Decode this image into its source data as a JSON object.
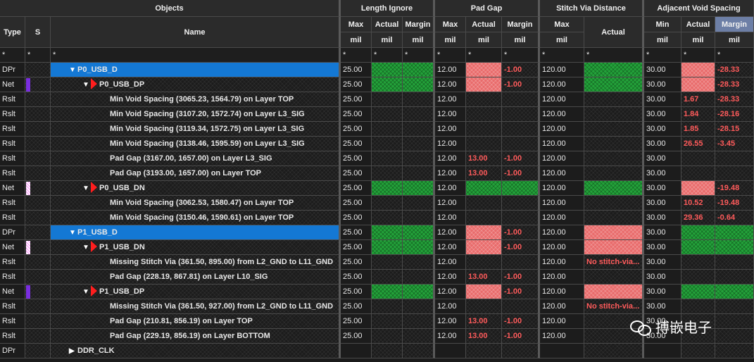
{
  "headers": {
    "groups": {
      "objects": "Objects",
      "length_ignore": "Length Ignore",
      "pad_gap": "Pad Gap",
      "stitch_via": "Stitch Via Distance",
      "adjacent_void": "Adjacent Void Spacing"
    },
    "columns": {
      "type": "Type",
      "s": "S",
      "name": "Name",
      "li_max": "Max",
      "li_actual": "Actual",
      "li_margin": "Margin",
      "pg_max": "Max",
      "pg_actual": "Actual",
      "pg_margin": "Margin",
      "sv_max": "Max",
      "sv_actual": "Actual",
      "av_min": "Min",
      "av_actual": "Actual",
      "av_margin": "Margin"
    },
    "units": {
      "li_max": "mil",
      "li_actual": "mil",
      "li_margin": "mil",
      "pg_max": "mil",
      "pg_actual": "mil",
      "pg_margin": "mil",
      "sv_max": "mil",
      "av_min": "mil",
      "av_actual": "mil",
      "av_margin": "mil"
    }
  },
  "filter_symbol": "*",
  "rows": [
    {
      "type": "DPr",
      "swatch": "",
      "indent": 1,
      "arrow": "down",
      "flag": false,
      "name": "P0_USB_D",
      "selected": true,
      "li_max": "25.00",
      "li_actual": {
        "v": "",
        "s": "g"
      },
      "li_margin": {
        "v": "",
        "s": "g"
      },
      "pg_max": "12.00",
      "pg_actual": {
        "v": "",
        "s": "r"
      },
      "pg_margin": {
        "v": "-1.00",
        "s": "neg"
      },
      "sv_max": "120.00",
      "sv_actual": {
        "v": "",
        "s": "g"
      },
      "av_min": "30.00",
      "av_actual": {
        "v": "",
        "s": "r"
      },
      "av_margin": {
        "v": "-28.33",
        "s": "neg"
      }
    },
    {
      "type": "Net",
      "swatch": "purple",
      "indent": 2,
      "arrow": "down",
      "flag": true,
      "name": "P0_USB_DP",
      "selected": false,
      "li_max": "25.00",
      "li_actual": {
        "v": "",
        "s": "g"
      },
      "li_margin": {
        "v": "",
        "s": "g"
      },
      "pg_max": "12.00",
      "pg_actual": {
        "v": "",
        "s": "r"
      },
      "pg_margin": {
        "v": "-1.00",
        "s": "neg"
      },
      "sv_max": "120.00",
      "sv_actual": {
        "v": "",
        "s": "g"
      },
      "av_min": "30.00",
      "av_actual": {
        "v": "",
        "s": "r"
      },
      "av_margin": {
        "v": "-28.33",
        "s": "neg"
      }
    },
    {
      "type": "Rslt",
      "swatch": "",
      "indent": 3,
      "arrow": "",
      "flag": false,
      "name": "Min Void Spacing (3065.23, 1564.79) on Layer TOP",
      "selected": false,
      "li_max": "25.00",
      "li_actual": {
        "v": "",
        "s": ""
      },
      "li_margin": {
        "v": "",
        "s": ""
      },
      "pg_max": "12.00",
      "pg_actual": {
        "v": "",
        "s": ""
      },
      "pg_margin": {
        "v": "",
        "s": ""
      },
      "sv_max": "120.00",
      "sv_actual": {
        "v": "",
        "s": ""
      },
      "av_min": "30.00",
      "av_actual": {
        "v": "1.67",
        "s": "neg"
      },
      "av_margin": {
        "v": "-28.33",
        "s": "neg"
      }
    },
    {
      "type": "Rslt",
      "swatch": "",
      "indent": 3,
      "arrow": "",
      "flag": false,
      "name": "Min Void Spacing (3107.20, 1572.74) on Layer L3_SIG",
      "selected": false,
      "li_max": "25.00",
      "li_actual": {
        "v": "",
        "s": ""
      },
      "li_margin": {
        "v": "",
        "s": ""
      },
      "pg_max": "12.00",
      "pg_actual": {
        "v": "",
        "s": ""
      },
      "pg_margin": {
        "v": "",
        "s": ""
      },
      "sv_max": "120.00",
      "sv_actual": {
        "v": "",
        "s": ""
      },
      "av_min": "30.00",
      "av_actual": {
        "v": "1.84",
        "s": "neg"
      },
      "av_margin": {
        "v": "-28.16",
        "s": "neg"
      }
    },
    {
      "type": "Rslt",
      "swatch": "",
      "indent": 3,
      "arrow": "",
      "flag": false,
      "name": "Min Void Spacing (3119.34, 1572.75) on Layer L3_SIG",
      "selected": false,
      "li_max": "25.00",
      "li_actual": {
        "v": "",
        "s": ""
      },
      "li_margin": {
        "v": "",
        "s": ""
      },
      "pg_max": "12.00",
      "pg_actual": {
        "v": "",
        "s": ""
      },
      "pg_margin": {
        "v": "",
        "s": ""
      },
      "sv_max": "120.00",
      "sv_actual": {
        "v": "",
        "s": ""
      },
      "av_min": "30.00",
      "av_actual": {
        "v": "1.85",
        "s": "neg"
      },
      "av_margin": {
        "v": "-28.15",
        "s": "neg"
      }
    },
    {
      "type": "Rslt",
      "swatch": "",
      "indent": 3,
      "arrow": "",
      "flag": false,
      "name": "Min Void Spacing (3138.46, 1595.59) on Layer L3_SIG",
      "selected": false,
      "li_max": "25.00",
      "li_actual": {
        "v": "",
        "s": ""
      },
      "li_margin": {
        "v": "",
        "s": ""
      },
      "pg_max": "12.00",
      "pg_actual": {
        "v": "",
        "s": ""
      },
      "pg_margin": {
        "v": "",
        "s": ""
      },
      "sv_max": "120.00",
      "sv_actual": {
        "v": "",
        "s": ""
      },
      "av_min": "30.00",
      "av_actual": {
        "v": "26.55",
        "s": "neg"
      },
      "av_margin": {
        "v": "-3.45",
        "s": "neg"
      }
    },
    {
      "type": "Rslt",
      "swatch": "",
      "indent": 3,
      "arrow": "",
      "flag": false,
      "name": "Pad Gap (3167.00, 1657.00) on Layer L3_SIG",
      "selected": false,
      "li_max": "25.00",
      "li_actual": {
        "v": "",
        "s": ""
      },
      "li_margin": {
        "v": "",
        "s": ""
      },
      "pg_max": "12.00",
      "pg_actual": {
        "v": "13.00",
        "s": "neg"
      },
      "pg_margin": {
        "v": "-1.00",
        "s": "neg"
      },
      "sv_max": "120.00",
      "sv_actual": {
        "v": "",
        "s": ""
      },
      "av_min": "30.00",
      "av_actual": {
        "v": "",
        "s": ""
      },
      "av_margin": {
        "v": "",
        "s": ""
      }
    },
    {
      "type": "Rslt",
      "swatch": "",
      "indent": 3,
      "arrow": "",
      "flag": false,
      "name": "Pad Gap (3193.00, 1657.00) on Layer TOP",
      "selected": false,
      "li_max": "25.00",
      "li_actual": {
        "v": "",
        "s": ""
      },
      "li_margin": {
        "v": "",
        "s": ""
      },
      "pg_max": "12.00",
      "pg_actual": {
        "v": "13.00",
        "s": "neg"
      },
      "pg_margin": {
        "v": "-1.00",
        "s": "neg"
      },
      "sv_max": "120.00",
      "sv_actual": {
        "v": "",
        "s": ""
      },
      "av_min": "30.00",
      "av_actual": {
        "v": "",
        "s": ""
      },
      "av_margin": {
        "v": "",
        "s": ""
      }
    },
    {
      "type": "Net",
      "swatch": "pink",
      "indent": 2,
      "arrow": "down",
      "flag": true,
      "name": "P0_USB_DN",
      "selected": false,
      "li_max": "25.00",
      "li_actual": {
        "v": "",
        "s": "g"
      },
      "li_margin": {
        "v": "",
        "s": "g"
      },
      "pg_max": "12.00",
      "pg_actual": {
        "v": "",
        "s": "g"
      },
      "pg_margin": {
        "v": "",
        "s": "g"
      },
      "sv_max": "120.00",
      "sv_actual": {
        "v": "",
        "s": "g"
      },
      "av_min": "30.00",
      "av_actual": {
        "v": "",
        "s": "r"
      },
      "av_margin": {
        "v": "-19.48",
        "s": "neg"
      }
    },
    {
      "type": "Rslt",
      "swatch": "",
      "indent": 3,
      "arrow": "",
      "flag": false,
      "name": "Min Void Spacing (3062.53, 1580.47) on Layer TOP",
      "selected": false,
      "li_max": "25.00",
      "li_actual": {
        "v": "",
        "s": ""
      },
      "li_margin": {
        "v": "",
        "s": ""
      },
      "pg_max": "12.00",
      "pg_actual": {
        "v": "",
        "s": ""
      },
      "pg_margin": {
        "v": "",
        "s": ""
      },
      "sv_max": "120.00",
      "sv_actual": {
        "v": "",
        "s": ""
      },
      "av_min": "30.00",
      "av_actual": {
        "v": "10.52",
        "s": "neg"
      },
      "av_margin": {
        "v": "-19.48",
        "s": "neg"
      }
    },
    {
      "type": "Rslt",
      "swatch": "",
      "indent": 3,
      "arrow": "",
      "flag": false,
      "name": "Min Void Spacing (3150.46, 1590.61) on Layer TOP",
      "selected": false,
      "li_max": "25.00",
      "li_actual": {
        "v": "",
        "s": ""
      },
      "li_margin": {
        "v": "",
        "s": ""
      },
      "pg_max": "12.00",
      "pg_actual": {
        "v": "",
        "s": ""
      },
      "pg_margin": {
        "v": "",
        "s": ""
      },
      "sv_max": "120.00",
      "sv_actual": {
        "v": "",
        "s": ""
      },
      "av_min": "30.00",
      "av_actual": {
        "v": "29.36",
        "s": "neg"
      },
      "av_margin": {
        "v": "-0.64",
        "s": "neg"
      }
    },
    {
      "type": "DPr",
      "swatch": "",
      "indent": 1,
      "arrow": "down",
      "flag": false,
      "name": "P1_USB_D",
      "selected": true,
      "li_max": "25.00",
      "li_actual": {
        "v": "",
        "s": "g"
      },
      "li_margin": {
        "v": "",
        "s": "g"
      },
      "pg_max": "12.00",
      "pg_actual": {
        "v": "",
        "s": "r"
      },
      "pg_margin": {
        "v": "-1.00",
        "s": "neg"
      },
      "sv_max": "120.00",
      "sv_actual": {
        "v": "",
        "s": "r"
      },
      "av_min": "30.00",
      "av_actual": {
        "v": "",
        "s": "g"
      },
      "av_margin": {
        "v": "",
        "s": "g"
      }
    },
    {
      "type": "Net",
      "swatch": "pink",
      "indent": 2,
      "arrow": "down",
      "flag": true,
      "name": "P1_USB_DN",
      "selected": false,
      "li_max": "25.00",
      "li_actual": {
        "v": "",
        "s": "g"
      },
      "li_margin": {
        "v": "",
        "s": "g"
      },
      "pg_max": "12.00",
      "pg_actual": {
        "v": "",
        "s": "r"
      },
      "pg_margin": {
        "v": "-1.00",
        "s": "neg"
      },
      "sv_max": "120.00",
      "sv_actual": {
        "v": "",
        "s": "r"
      },
      "av_min": "30.00",
      "av_actual": {
        "v": "",
        "s": "g"
      },
      "av_margin": {
        "v": "",
        "s": "g"
      }
    },
    {
      "type": "Rslt",
      "swatch": "",
      "indent": 3,
      "arrow": "",
      "flag": false,
      "name": "Missing Stitch Via (361.50, 895.00) from L2_GND to L11_GND",
      "selected": false,
      "li_max": "25.00",
      "li_actual": {
        "v": "",
        "s": ""
      },
      "li_margin": {
        "v": "",
        "s": ""
      },
      "pg_max": "12.00",
      "pg_actual": {
        "v": "",
        "s": ""
      },
      "pg_margin": {
        "v": "",
        "s": ""
      },
      "sv_max": "120.00",
      "sv_actual": {
        "v": "No stitch-via...",
        "s": "neg"
      },
      "av_min": "30.00",
      "av_actual": {
        "v": "",
        "s": ""
      },
      "av_margin": {
        "v": "",
        "s": ""
      }
    },
    {
      "type": "Rslt",
      "swatch": "",
      "indent": 3,
      "arrow": "",
      "flag": false,
      "name": "Pad Gap (228.19, 867.81) on Layer L10_SIG",
      "selected": false,
      "li_max": "25.00",
      "li_actual": {
        "v": "",
        "s": ""
      },
      "li_margin": {
        "v": "",
        "s": ""
      },
      "pg_max": "12.00",
      "pg_actual": {
        "v": "13.00",
        "s": "neg"
      },
      "pg_margin": {
        "v": "-1.00",
        "s": "neg"
      },
      "sv_max": "120.00",
      "sv_actual": {
        "v": "",
        "s": ""
      },
      "av_min": "30.00",
      "av_actual": {
        "v": "",
        "s": ""
      },
      "av_margin": {
        "v": "",
        "s": ""
      }
    },
    {
      "type": "Net",
      "swatch": "purple",
      "indent": 2,
      "arrow": "down",
      "flag": true,
      "name": "P1_USB_DP",
      "selected": false,
      "li_max": "25.00",
      "li_actual": {
        "v": "",
        "s": "g"
      },
      "li_margin": {
        "v": "",
        "s": "g"
      },
      "pg_max": "12.00",
      "pg_actual": {
        "v": "",
        "s": "r"
      },
      "pg_margin": {
        "v": "-1.00",
        "s": "neg"
      },
      "sv_max": "120.00",
      "sv_actual": {
        "v": "",
        "s": "r"
      },
      "av_min": "30.00",
      "av_actual": {
        "v": "",
        "s": "g"
      },
      "av_margin": {
        "v": "",
        "s": "g"
      }
    },
    {
      "type": "Rslt",
      "swatch": "",
      "indent": 3,
      "arrow": "",
      "flag": false,
      "name": "Missing Stitch Via (361.50, 927.00) from L2_GND to L11_GND",
      "selected": false,
      "li_max": "25.00",
      "li_actual": {
        "v": "",
        "s": ""
      },
      "li_margin": {
        "v": "",
        "s": ""
      },
      "pg_max": "12.00",
      "pg_actual": {
        "v": "",
        "s": ""
      },
      "pg_margin": {
        "v": "",
        "s": ""
      },
      "sv_max": "120.00",
      "sv_actual": {
        "v": "No stitch-via...",
        "s": "neg"
      },
      "av_min": "30.00",
      "av_actual": {
        "v": "",
        "s": ""
      },
      "av_margin": {
        "v": "",
        "s": ""
      }
    },
    {
      "type": "Rslt",
      "swatch": "",
      "indent": 3,
      "arrow": "",
      "flag": false,
      "name": "Pad Gap (210.81, 856.19) on Layer TOP",
      "selected": false,
      "li_max": "25.00",
      "li_actual": {
        "v": "",
        "s": ""
      },
      "li_margin": {
        "v": "",
        "s": ""
      },
      "pg_max": "12.00",
      "pg_actual": {
        "v": "13.00",
        "s": "neg"
      },
      "pg_margin": {
        "v": "-1.00",
        "s": "neg"
      },
      "sv_max": "120.00",
      "sv_actual": {
        "v": "",
        "s": ""
      },
      "av_min": "30.00",
      "av_actual": {
        "v": "",
        "s": ""
      },
      "av_margin": {
        "v": "",
        "s": ""
      }
    },
    {
      "type": "Rslt",
      "swatch": "",
      "indent": 3,
      "arrow": "",
      "flag": false,
      "name": "Pad Gap (229.19, 856.19) on Layer BOTTOM",
      "selected": false,
      "li_max": "25.00",
      "li_actual": {
        "v": "",
        "s": ""
      },
      "li_margin": {
        "v": "",
        "s": ""
      },
      "pg_max": "12.00",
      "pg_actual": {
        "v": "13.00",
        "s": "neg"
      },
      "pg_margin": {
        "v": "-1.00",
        "s": "neg"
      },
      "sv_max": "120.00",
      "sv_actual": {
        "v": "",
        "s": ""
      },
      "av_min": "30.00",
      "av_actual": {
        "v": "",
        "s": ""
      },
      "av_margin": {
        "v": "",
        "s": ""
      }
    },
    {
      "type": "DPr",
      "swatch": "",
      "indent": 1,
      "arrow": "right",
      "flag": false,
      "name": "DDR_CLK",
      "selected": false,
      "li_max": "",
      "li_actual": {
        "v": "",
        "s": ""
      },
      "li_margin": {
        "v": "",
        "s": ""
      },
      "pg_max": "",
      "pg_actual": {
        "v": "",
        "s": ""
      },
      "pg_margin": {
        "v": "",
        "s": ""
      },
      "sv_max": "",
      "sv_actual": {
        "v": "",
        "s": ""
      },
      "av_min": "",
      "av_actual": {
        "v": "",
        "s": ""
      },
      "av_margin": {
        "v": "",
        "s": ""
      }
    }
  ],
  "watermark": "搏嵌电子",
  "colors": {
    "pass": "#23a23a",
    "fail": "#e96b6b",
    "violation_text": "#ff5b5b",
    "selection": "#1478d4",
    "header_highlight": "#6d7fa6"
  }
}
